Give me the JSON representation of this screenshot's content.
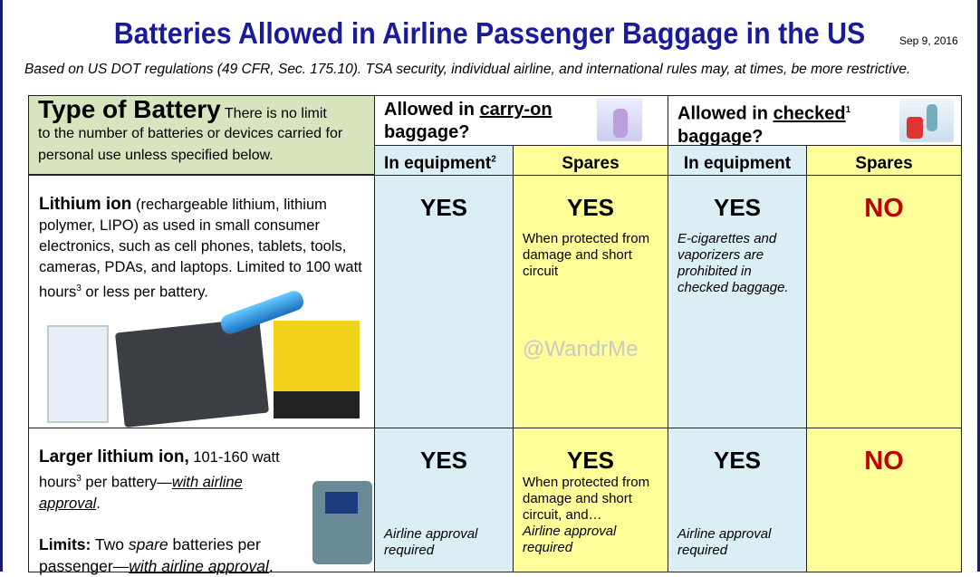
{
  "header": {
    "title": "Batteries Allowed in Airline Passenger Baggage in the US",
    "date": "Sep 9, 2016",
    "subtitle": "Based on US DOT regulations (49 CFR, Sec. 175.10).   TSA security, individual airline, and international rules may, at times, be more restrictive."
  },
  "table": {
    "type_heading": "Type of Battery",
    "type_note_1": " There is no limit",
    "type_note_2": "to the number of batteries or devices carried for personal use unless specified below.",
    "carry_on": {
      "pre": "Allowed in ",
      "em": "carry-on",
      "post": "baggage?"
    },
    "checked": {
      "pre": "Allowed in ",
      "em": "checked",
      "sup": "1",
      "post": "baggage?"
    },
    "subheaders": [
      "In equipment",
      "Spares",
      "In equipment",
      "Spares"
    ],
    "subheader_sup": "2",
    "rows": [
      {
        "name": "Lithium ion",
        "desc": " (rechargeable lithium, lithium polymer, LIPO) as used in small consumer electronics, such as cell phones, tablets, tools, cameras, PDAs, and laptops. Limited to 100 watt hours",
        "sup": "3",
        "desc2": " or less per battery.",
        "cells": [
          {
            "verdict": "YES",
            "note": ""
          },
          {
            "verdict": "YES",
            "note": "When protected from damage and short circuit"
          },
          {
            "verdict": "YES",
            "note": "E-cigarettes and vaporizers are prohibited in checked baggage."
          },
          {
            "verdict": "NO",
            "note": ""
          }
        ]
      },
      {
        "name": "Larger lithium ion,",
        "desc": " 101-160 watt hours",
        "sup": "3",
        "desc2": " per battery—",
        "approval": "with airline approval",
        "limits_label": "Limits:",
        "limits_a": " Two ",
        "limits_spare": "spare",
        "limits_b": " batteries per passenger—",
        "cells": [
          {
            "verdict": "YES",
            "note": "",
            "foot": "Airline approval required"
          },
          {
            "verdict": "YES",
            "note": "When protected from damage and short circuit, and…",
            "foot": "Airline approval required"
          },
          {
            "verdict": "YES",
            "note": "",
            "foot": "Airline approval required"
          },
          {
            "verdict": "NO",
            "note": ""
          }
        ]
      }
    ]
  },
  "watermark": "@WandrMe",
  "colors": {
    "title": "#1a1a9c",
    "equipment": "#daeef3",
    "spares": "#ffff99",
    "type_header": "#d7e4bd",
    "no": "#c00000"
  }
}
